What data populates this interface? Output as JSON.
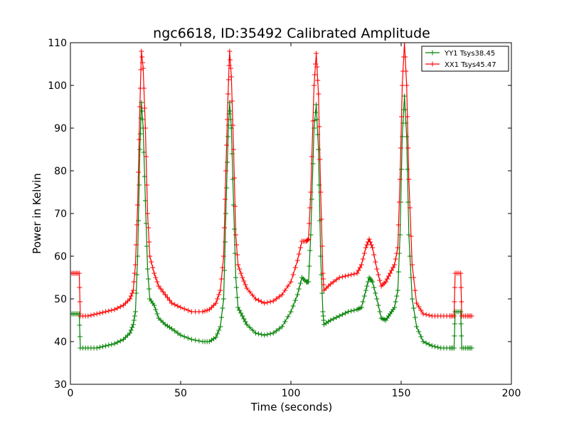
{
  "chart_data": {
    "type": "line",
    "title": "ngc6618, ID:35492 Calibrated Amplitude",
    "xlabel": "Time (seconds)",
    "ylabel": "Power in Kelvin",
    "xlim": [
      0,
      200
    ],
    "ylim": [
      30,
      110
    ],
    "xticks": [
      0,
      50,
      100,
      150,
      200
    ],
    "yticks": [
      30,
      40,
      50,
      60,
      70,
      80,
      90,
      100,
      110
    ],
    "grid": false,
    "legend_position": "top-right",
    "series": [
      {
        "name": "YY1 Tsys38.45",
        "color": "#008000",
        "marker": "+",
        "points": [
          [
            0,
            46.5
          ],
          [
            2,
            46.5
          ],
          [
            4,
            46.5
          ],
          [
            4.5,
            38.5
          ],
          [
            8,
            38.5
          ],
          [
            12,
            38.5
          ],
          [
            16,
            39
          ],
          [
            20,
            39.5
          ],
          [
            24,
            40.5
          ],
          [
            27,
            42
          ],
          [
            28.5,
            44
          ],
          [
            29.5,
            47
          ],
          [
            30.5,
            60
          ],
          [
            31.5,
            85
          ],
          [
            32.2,
            96
          ],
          [
            33,
            90
          ],
          [
            34,
            73
          ],
          [
            35,
            57
          ],
          [
            36,
            50
          ],
          [
            38,
            48.5
          ],
          [
            40,
            45.5
          ],
          [
            43,
            44
          ],
          [
            46,
            43
          ],
          [
            50,
            41.5
          ],
          [
            55,
            40.5
          ],
          [
            60,
            40
          ],
          [
            63,
            40
          ],
          [
            66,
            41
          ],
          [
            68,
            43.5
          ],
          [
            69.5,
            50
          ],
          [
            70.5,
            70
          ],
          [
            71.5,
            88
          ],
          [
            72.2,
            96
          ],
          [
            73,
            90
          ],
          [
            74,
            72
          ],
          [
            75,
            55
          ],
          [
            76,
            48
          ],
          [
            78,
            46
          ],
          [
            80,
            44
          ],
          [
            84,
            42
          ],
          [
            88,
            41.5
          ],
          [
            92,
            42
          ],
          [
            96,
            43.5
          ],
          [
            100,
            47
          ],
          [
            103,
            51
          ],
          [
            105,
            55
          ],
          [
            107,
            54
          ],
          [
            108,
            54
          ],
          [
            109,
            65
          ],
          [
            110.5,
            90
          ],
          [
            111.5,
            95.5
          ],
          [
            112.5,
            85
          ],
          [
            113.5,
            60
          ],
          [
            114.5,
            47
          ],
          [
            115,
            44
          ],
          [
            118,
            45
          ],
          [
            122,
            46
          ],
          [
            126,
            47
          ],
          [
            130,
            47.5
          ],
          [
            132,
            48
          ],
          [
            134,
            52
          ],
          [
            135.5,
            55
          ],
          [
            137,
            54
          ],
          [
            139,
            50
          ],
          [
            141,
            45.5
          ],
          [
            143,
            45
          ],
          [
            145,
            46.5
          ],
          [
            147,
            48
          ],
          [
            148.5,
            52
          ],
          [
            149.5,
            65
          ],
          [
            150.5,
            88
          ],
          [
            151.5,
            97.5
          ],
          [
            152.5,
            88
          ],
          [
            153.5,
            65
          ],
          [
            155,
            50
          ],
          [
            157,
            43.5
          ],
          [
            160,
            40
          ],
          [
            164,
            39
          ],
          [
            168,
            38.5
          ],
          [
            172,
            38.5
          ],
          [
            174,
            38.5
          ],
          [
            174.5,
            47
          ],
          [
            177,
            47
          ],
          [
            177.5,
            38.5
          ],
          [
            180,
            38.5
          ],
          [
            182,
            38.5
          ]
        ]
      },
      {
        "name": "XX1 Tsys45.47",
        "color": "#ff0000",
        "marker": "+",
        "points": [
          [
            0,
            56
          ],
          [
            2,
            56
          ],
          [
            4,
            56
          ],
          [
            4.5,
            46
          ],
          [
            8,
            46
          ],
          [
            12,
            46.5
          ],
          [
            16,
            47
          ],
          [
            20,
            47.5
          ],
          [
            24,
            48.5
          ],
          [
            27,
            50
          ],
          [
            28.5,
            52
          ],
          [
            29.5,
            58
          ],
          [
            30.5,
            72
          ],
          [
            31.5,
            95
          ],
          [
            32.2,
            108
          ],
          [
            33,
            104
          ],
          [
            34,
            90
          ],
          [
            35,
            70
          ],
          [
            36,
            60
          ],
          [
            38,
            56
          ],
          [
            40,
            53
          ],
          [
            43,
            51
          ],
          [
            46,
            49
          ],
          [
            50,
            48
          ],
          [
            55,
            47
          ],
          [
            60,
            47
          ],
          [
            63,
            47.5
          ],
          [
            66,
            49
          ],
          [
            68,
            52
          ],
          [
            69.5,
            60
          ],
          [
            70.5,
            80
          ],
          [
            71.5,
            98
          ],
          [
            72.2,
            108
          ],
          [
            73,
            102
          ],
          [
            74,
            85
          ],
          [
            75,
            65
          ],
          [
            76,
            58
          ],
          [
            78,
            55
          ],
          [
            80,
            52.5
          ],
          [
            84,
            50
          ],
          [
            88,
            49
          ],
          [
            92,
            49.5
          ],
          [
            96,
            51
          ],
          [
            100,
            54
          ],
          [
            103,
            59
          ],
          [
            105,
            63.5
          ],
          [
            107,
            63.5
          ],
          [
            108,
            64
          ],
          [
            109,
            75
          ],
          [
            110.5,
            100
          ],
          [
            111.5,
            107.5
          ],
          [
            112.5,
            98
          ],
          [
            113.5,
            75
          ],
          [
            114.5,
            56
          ],
          [
            115,
            52
          ],
          [
            118,
            53.5
          ],
          [
            122,
            55
          ],
          [
            126,
            55.5
          ],
          [
            130,
            56
          ],
          [
            132,
            58
          ],
          [
            134,
            62
          ],
          [
            135.5,
            64
          ],
          [
            137,
            62
          ],
          [
            139,
            57
          ],
          [
            141,
            53
          ],
          [
            143,
            54
          ],
          [
            145,
            56
          ],
          [
            147,
            58
          ],
          [
            148.5,
            62
          ],
          [
            149.5,
            78
          ],
          [
            150.5,
            100
          ],
          [
            151.5,
            110
          ],
          [
            152.5,
            100
          ],
          [
            153.5,
            78
          ],
          [
            155,
            58
          ],
          [
            157,
            49
          ],
          [
            160,
            46.5
          ],
          [
            164,
            46
          ],
          [
            168,
            46
          ],
          [
            172,
            46
          ],
          [
            174,
            46
          ],
          [
            174.5,
            56
          ],
          [
            177,
            56
          ],
          [
            177.5,
            46
          ],
          [
            180,
            46
          ],
          [
            182,
            46
          ]
        ]
      }
    ]
  }
}
